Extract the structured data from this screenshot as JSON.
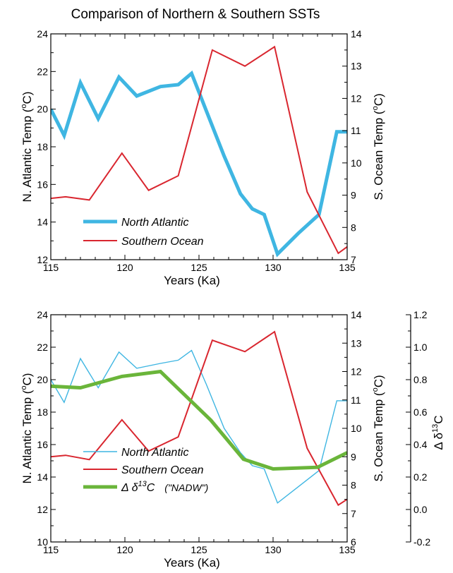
{
  "figure_title": "Comparison of Northern & Southern SSTs",
  "colors": {
    "north": "#3fb6e2",
    "south": "#d9262f",
    "d13c": "#6ab53a"
  },
  "chart_data": [
    {
      "type": "line",
      "title": "Comparison of Northern & Southern SSTs",
      "xlabel": "Years  (Ka)",
      "xlim": [
        115,
        135
      ],
      "xticks": [
        115,
        120,
        125,
        130,
        135
      ],
      "ylabel_left": "N. Atlantic Temp  (°C)",
      "ylabel_left_main": "N. Atlantic Temp  (",
      "ylabel_left_sup": "o",
      "ylabel_left_end": "C)",
      "ylim_left": [
        12,
        24
      ],
      "yticks_left": [
        12,
        14,
        16,
        18,
        20,
        22,
        24
      ],
      "ylabel_right": "S. Ocean Temp  (°C)",
      "ylabel_right_main": "S. Ocean Temp  (",
      "ylabel_right_sup": "o",
      "ylabel_right_end": "C)",
      "ylim_right": [
        7,
        14
      ],
      "yticks_right": [
        7,
        8,
        9,
        10,
        11,
        12,
        13,
        14
      ],
      "legend_placement": "lower-left",
      "series": [
        {
          "name": "North Atlantic",
          "axis": "left",
          "x": [
            115,
            115.9,
            117,
            118.2,
            119.6,
            120.8,
            122.4,
            123.6,
            124.5,
            125.5,
            126.7,
            127.8,
            128.6,
            129.4,
            130.3,
            131.7,
            133.1,
            134.3,
            135
          ],
          "y": [
            20.0,
            18.6,
            21.4,
            19.5,
            21.7,
            20.7,
            21.2,
            21.3,
            21.9,
            19.9,
            17.5,
            15.5,
            14.7,
            14.4,
            12.3,
            13.4,
            14.4,
            18.8,
            18.8
          ]
        },
        {
          "name": "Southern Ocean",
          "axis": "right",
          "x": [
            115,
            116,
            117.6,
            119.8,
            121.6,
            123.6,
            125.9,
            128.1,
            130.1,
            132.3,
            134.4,
            135
          ],
          "y": [
            8.9,
            8.95,
            8.85,
            10.3,
            9.15,
            9.6,
            13.5,
            13.0,
            13.6,
            9.1,
            7.2,
            7.4
          ]
        }
      ]
    },
    {
      "type": "line",
      "xlabel": "Years  (Ka)",
      "xlim": [
        115,
        135
      ],
      "xticks": [
        115,
        120,
        125,
        130,
        135
      ],
      "ylabel_left": "N. Atlantic Temp  (°C)",
      "ylabel_left_main": "N. Atlantic Temp  (",
      "ylabel_left_sup": "o",
      "ylabel_left_end": "C)",
      "ylim_left": [
        10,
        24
      ],
      "yticks_left": [
        10,
        12,
        14,
        16,
        18,
        20,
        22,
        24
      ],
      "ylabel_right": "S. Ocean Temp  (°C)",
      "ylabel_right_main": "S. Ocean Temp  (",
      "ylabel_right_sup": "o",
      "ylabel_right_end": "C)",
      "ylim_right": [
        6,
        14
      ],
      "yticks_right": [
        6,
        7,
        8,
        9,
        10,
        11,
        12,
        13,
        14
      ],
      "ylabel_far": "Δ δ13C",
      "ylabel_far_delta": "Δ δ",
      "ylabel_far_sup": "13",
      "ylabel_far_end": "C",
      "ylim_far": [
        -0.2,
        1.2
      ],
      "yticks_far": [
        -0.2,
        0.0,
        0.2,
        0.4,
        0.6,
        0.8,
        1.0,
        1.2
      ],
      "ytick_labels_far": [
        "-0.2",
        "0.0",
        "0.2",
        "0.4",
        "0.6",
        "0.8",
        "1.0",
        "1.2"
      ],
      "legend_placement": "lower-left",
      "series": [
        {
          "name": "North Atlantic",
          "axis": "left",
          "x": [
            115,
            115.9,
            117,
            118.2,
            119.6,
            120.8,
            122.4,
            123.6,
            124.5,
            125.5,
            126.7,
            127.8,
            128.6,
            129.4,
            130.3,
            131.7,
            133.1,
            134.3,
            135
          ],
          "y": [
            20.0,
            18.6,
            21.3,
            19.5,
            21.7,
            20.7,
            21.0,
            21.2,
            21.8,
            19.7,
            17.0,
            15.5,
            14.7,
            14.5,
            12.4,
            13.4,
            14.4,
            18.7,
            18.7
          ]
        },
        {
          "name": "Southern Ocean",
          "axis": "right",
          "x": [
            115,
            116,
            117.6,
            119.8,
            121.6,
            123.6,
            125.9,
            128.1,
            130.1,
            132.3,
            134.4,
            135
          ],
          "y": [
            9.0,
            9.05,
            8.9,
            10.3,
            9.2,
            9.7,
            13.1,
            12.7,
            13.4,
            9.3,
            7.3,
            7.5
          ]
        },
        {
          "name": "Δ δ13C  (\"NADW\")",
          "legend_main": "Δ δ",
          "legend_sup": "13",
          "legend_c": "C",
          "legend_note": "(\"NADW\")",
          "axis": "far",
          "x": [
            115,
            117,
            119.8,
            122.4,
            125.8,
            128,
            130,
            133,
            135
          ],
          "y": [
            0.76,
            0.75,
            0.82,
            0.85,
            0.55,
            0.31,
            0.25,
            0.26,
            0.35
          ]
        }
      ]
    }
  ]
}
